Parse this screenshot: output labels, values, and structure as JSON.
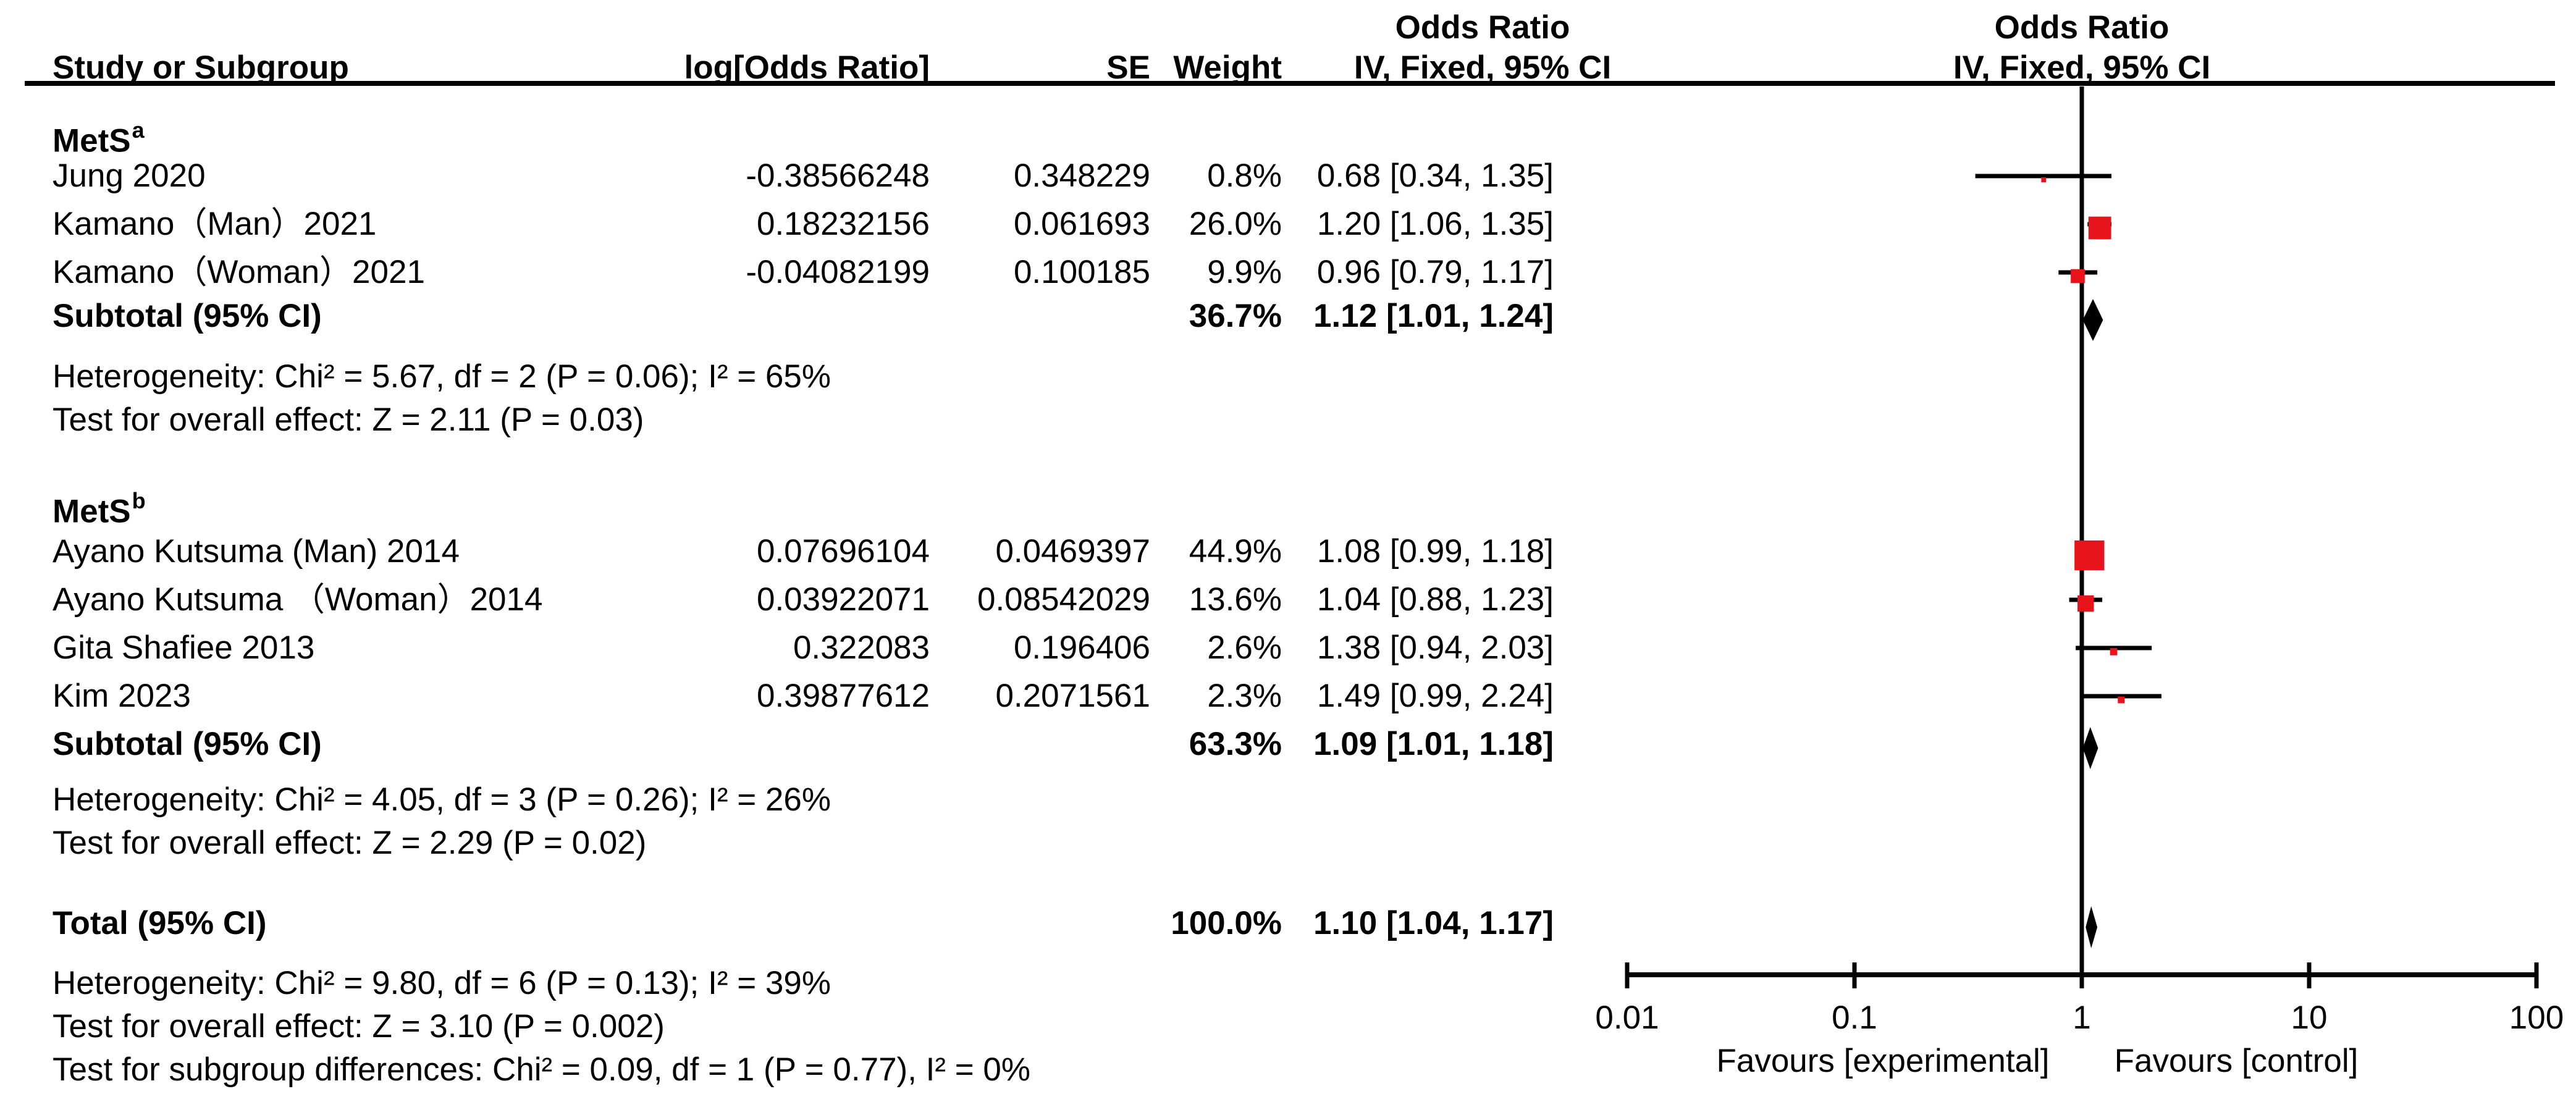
{
  "header": {
    "or_left": "Odds Ratio",
    "iv_left": "IV, Fixed, 95% CI",
    "or_right": "Odds Ratio",
    "iv_right": "IV, Fixed, 95% CI",
    "study": "Study or Subgroup",
    "log_or": "log[Odds Ratio]",
    "se": "SE",
    "weight": "Weight"
  },
  "colors": {
    "marker_red": "#e8141c",
    "line_black": "#000000",
    "text_black": "#000000"
  },
  "chart_data": {
    "type": "forest",
    "effect_measure": "Odds Ratio",
    "model": "IV, Fixed, 95% CI",
    "x_axis": {
      "scale": "log10",
      "ticks": [
        0.01,
        0.1,
        1,
        10,
        100
      ],
      "tick_labels": [
        "0.01",
        "0.1",
        "1",
        "10",
        "100"
      ],
      "favours_left": "Favours [experimental]",
      "favours_right": "Favours [control]"
    },
    "groups": [
      {
        "label": "MetS",
        "sup": "a",
        "studies": [
          {
            "name": "Jung 2020",
            "log_or": "-0.38566248",
            "se": "0.348229",
            "weight_text": "0.8%",
            "weight": 0.8,
            "ci_text": "0.68 [0.34, 1.35]",
            "or": 0.68,
            "lo": 0.34,
            "hi": 1.35
          },
          {
            "name": "Kamano（Man）2021",
            "log_or": "0.18232156",
            "se": "0.061693",
            "weight_text": "26.0%",
            "weight": 26.0,
            "ci_text": "1.20 [1.06, 1.35]",
            "or": 1.2,
            "lo": 1.06,
            "hi": 1.35
          },
          {
            "name": "Kamano（Woman）2021",
            "log_or": "-0.04082199",
            "se": "0.100185",
            "weight_text": "9.9%",
            "weight": 9.9,
            "ci_text": "0.96 [0.79, 1.17]",
            "or": 0.96,
            "lo": 0.79,
            "hi": 1.17
          }
        ],
        "subtotal": {
          "label": "Subtotal (95% CI)",
          "weight_text": "36.7%",
          "ci_text": "1.12 [1.01, 1.24]",
          "or": 1.12,
          "lo": 1.01,
          "hi": 1.24
        },
        "heterogeneity": "Heterogeneity: Chi² = 5.67, df = 2 (P = 0.06); I² = 65%",
        "overall_effect": "Test for overall effect: Z = 2.11 (P = 0.03)"
      },
      {
        "label": "MetS",
        "sup": "b",
        "studies": [
          {
            "name": "Ayano Kutsuma (Man) 2014",
            "log_or": "0.07696104",
            "se": "0.0469397",
            "weight_text": "44.9%",
            "weight": 44.9,
            "ci_text": "1.08 [0.99, 1.18]",
            "or": 1.08,
            "lo": 0.99,
            "hi": 1.18
          },
          {
            "name": "Ayano Kutsuma （Woman）2014",
            "log_or": "0.03922071",
            "se": "0.08542029",
            "weight_text": "13.6%",
            "weight": 13.6,
            "ci_text": "1.04 [0.88, 1.23]",
            "or": 1.04,
            "lo": 0.88,
            "hi": 1.23
          },
          {
            "name": "Gita Shafiee 2013",
            "log_or": "0.322083",
            "se": "0.196406",
            "weight_text": "2.6%",
            "weight": 2.6,
            "ci_text": "1.38 [0.94, 2.03]",
            "or": 1.38,
            "lo": 0.94,
            "hi": 2.03
          },
          {
            "name": "Kim 2023",
            "log_or": "0.39877612",
            "se": "0.2071561",
            "weight_text": "2.3%",
            "weight": 2.3,
            "ci_text": "1.49 [0.99, 2.24]",
            "or": 1.49,
            "lo": 0.99,
            "hi": 2.24
          }
        ],
        "subtotal": {
          "label": "Subtotal (95% CI)",
          "weight_text": "63.3%",
          "ci_text": "1.09 [1.01, 1.18]",
          "or": 1.09,
          "lo": 1.01,
          "hi": 1.18
        },
        "heterogeneity": "Heterogeneity: Chi² = 4.05, df = 3 (P = 0.26); I² = 26%",
        "overall_effect": "Test for overall effect: Z = 2.29 (P = 0.02)"
      }
    ],
    "total": {
      "label": "Total (95% CI)",
      "weight_text": "100.0%",
      "ci_text": "1.10 [1.04, 1.17]",
      "or": 1.1,
      "lo": 1.04,
      "hi": 1.17
    },
    "total_heterogeneity": "Heterogeneity: Chi² = 9.80, df = 6 (P = 0.13); I² = 39%",
    "total_overall_effect": "Test for overall effect: Z = 3.10 (P = 0.002)",
    "subgroup_differences": "Test for subgroup differences: Chi² = 0.09, df = 1 (P = 0.77), I² = 0%"
  }
}
